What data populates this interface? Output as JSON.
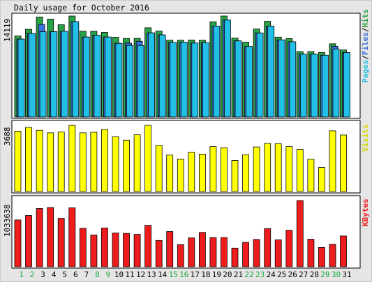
{
  "title": "Daily usage for October 2016",
  "colors": {
    "background": "#e5e5e5",
    "panel": "#ffffff",
    "hits": "#29a347",
    "files": "#3b6fd9",
    "pages": "#22bfe6",
    "visits": "#ffff00",
    "kbytes": "#ee1c1c",
    "weekend": "#1aaa3a",
    "weekday": "#000000"
  },
  "chart_data": [
    {
      "type": "bar",
      "panel": "pages-files-hits",
      "ymax_label": "14119",
      "legend": [
        "Pages",
        "/",
        "Files",
        "/",
        "Hits"
      ],
      "ylim": [
        0,
        14119
      ],
      "categories": [
        "1",
        "2",
        "3",
        "4",
        "5",
        "6",
        "7",
        "8",
        "9",
        "10",
        "11",
        "12",
        "13",
        "14",
        "15",
        "16",
        "17",
        "18",
        "19",
        "20",
        "21",
        "22",
        "23",
        "24",
        "25",
        "26",
        "27",
        "28",
        "29",
        "30",
        "31"
      ],
      "weekend_days": [
        "1",
        "2",
        "8",
        "9",
        "15",
        "16",
        "22",
        "23",
        "29",
        "30"
      ],
      "series": [
        {
          "name": "Hits",
          "values": [
            11320,
            12260,
            13980,
            13680,
            12900,
            14119,
            11990,
            11990,
            11830,
            11150,
            10980,
            10990,
            12470,
            12020,
            10740,
            10740,
            10770,
            10730,
            13310,
            14119,
            11030,
            10470,
            12300,
            13380,
            11170,
            10960,
            9140,
            9140,
            9030,
            10230,
            9370
          ]
        },
        {
          "name": "Files",
          "values": [
            10900,
            11680,
            12940,
            11930,
            11990,
            13320,
            11180,
            11430,
            11180,
            10300,
            10330,
            10580,
            11760,
            11480,
            10430,
            10460,
            10340,
            10380,
            12720,
            13550,
            10640,
            9860,
            11750,
            12710,
            10780,
            10520,
            8780,
            8780,
            8640,
            9890,
            9010
          ]
        },
        {
          "name": "Pages",
          "values": [
            10900,
            11680,
            11930,
            11930,
            11990,
            13320,
            11180,
            11430,
            11180,
            10300,
            10010,
            10000,
            11760,
            11480,
            10430,
            10460,
            10340,
            10380,
            12720,
            13550,
            10640,
            9860,
            11750,
            12710,
            10780,
            10520,
            8780,
            8780,
            8640,
            9510,
            9010
          ]
        }
      ]
    },
    {
      "type": "bar",
      "panel": "visits",
      "ymax_label": "3688",
      "legend": [
        "Visits"
      ],
      "ylim": [
        0,
        3688
      ],
      "categories": [
        "1",
        "2",
        "3",
        "4",
        "5",
        "6",
        "7",
        "8",
        "9",
        "10",
        "11",
        "12",
        "13",
        "14",
        "15",
        "16",
        "17",
        "18",
        "19",
        "20",
        "21",
        "22",
        "23",
        "24",
        "25",
        "26",
        "27",
        "28",
        "29",
        "30",
        "31"
      ],
      "series": [
        {
          "name": "Visits",
          "values": [
            3360,
            3570,
            3410,
            3270,
            3320,
            3688,
            3270,
            3300,
            3460,
            3050,
            2860,
            3160,
            3688,
            2570,
            2030,
            1810,
            2190,
            2080,
            2500,
            2440,
            1730,
            2050,
            2480,
            2680,
            2670,
            2500,
            2350,
            1800,
            1340,
            3380,
            3150
          ]
        }
      ]
    },
    {
      "type": "bar",
      "panel": "kbytes",
      "ymax_label": "1033638",
      "legend": [
        "KBytes"
      ],
      "ylim": [
        0,
        1033638
      ],
      "categories": [
        "1",
        "2",
        "3",
        "4",
        "5",
        "6",
        "7",
        "8",
        "9",
        "10",
        "11",
        "12",
        "13",
        "14",
        "15",
        "16",
        "17",
        "18",
        "19",
        "20",
        "21",
        "22",
        "23",
        "24",
        "25",
        "26",
        "27",
        "28",
        "29",
        "30",
        "31"
      ],
      "series": [
        {
          "name": "KBytes",
          "values": [
            730000,
            800000,
            910000,
            925000,
            755000,
            920000,
            600000,
            495000,
            605000,
            525000,
            520000,
            505000,
            645000,
            410000,
            550000,
            345000,
            450000,
            535000,
            455000,
            455000,
            290000,
            380000,
            425000,
            595000,
            420000,
            570000,
            1033638,
            430000,
            300000,
            350000,
            480000
          ]
        }
      ]
    }
  ]
}
